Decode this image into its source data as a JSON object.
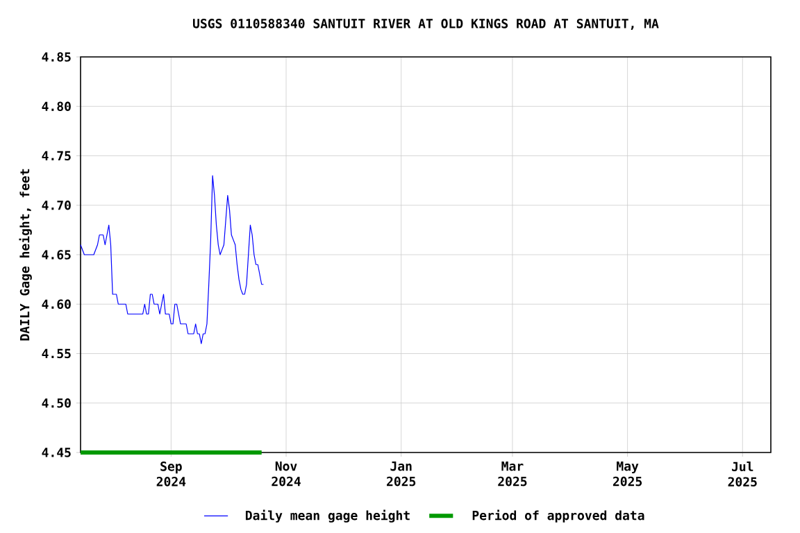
{
  "chart_data": {
    "type": "line",
    "title": "USGS 0110588340 SANTUIT RIVER AT OLD KINGS ROAD AT SANTUIT, MA",
    "ylabel": "DAILY Gage height, feet",
    "xlim": [
      "2024-07-15",
      "2025-07-16"
    ],
    "xticks": [
      {
        "value": "2024-09-01",
        "label": "Sep 2024"
      },
      {
        "value": "2024-11-01",
        "label": "Nov 2024"
      },
      {
        "value": "2025-01-01",
        "label": "Jan 2025"
      },
      {
        "value": "2025-03-01",
        "label": "Mar 2025"
      },
      {
        "value": "2025-05-01",
        "label": "May 2025"
      },
      {
        "value": "2025-07-01",
        "label": "Jul 2025"
      }
    ],
    "ylim": [
      4.45,
      4.85
    ],
    "yticks": [
      {
        "value": 4.45,
        "label": "4.45"
      },
      {
        "value": 4.5,
        "label": "4.50"
      },
      {
        "value": 4.55,
        "label": "4.55"
      },
      {
        "value": 4.6,
        "label": "4.60"
      },
      {
        "value": 4.65,
        "label": "4.65"
      },
      {
        "value": 4.7,
        "label": "4.70"
      },
      {
        "value": 4.75,
        "label": "4.75"
      },
      {
        "value": 4.8,
        "label": "4.80"
      },
      {
        "value": 4.85,
        "label": "4.85"
      }
    ],
    "grid": true,
    "legend": "bottom",
    "series": [
      {
        "name": "Daily mean gage height",
        "color": "#0000ff",
        "x": [
          "2024-07-15",
          "2024-07-17",
          "2024-07-22",
          "2024-07-24",
          "2024-07-25",
          "2024-07-27",
          "2024-07-28",
          "2024-07-29",
          "2024-07-30",
          "2024-07-31",
          "2024-08-01",
          "2024-08-03",
          "2024-08-04",
          "2024-08-08",
          "2024-08-09",
          "2024-08-17",
          "2024-08-18",
          "2024-08-19",
          "2024-08-20",
          "2024-08-21",
          "2024-08-22",
          "2024-08-23",
          "2024-08-25",
          "2024-08-26",
          "2024-08-27",
          "2024-08-28",
          "2024-08-29",
          "2024-08-31",
          "2024-09-01",
          "2024-09-02",
          "2024-09-03",
          "2024-09-04",
          "2024-09-05",
          "2024-09-06",
          "2024-09-09",
          "2024-09-10",
          "2024-09-13",
          "2024-09-14",
          "2024-09-15",
          "2024-09-16",
          "2024-09-17",
          "2024-09-18",
          "2024-09-19",
          "2024-09-20",
          "2024-09-21",
          "2024-09-22",
          "2024-09-23",
          "2024-09-24",
          "2024-09-25",
          "2024-09-26",
          "2024-09-27",
          "2024-09-28",
          "2024-09-29",
          "2024-09-30",
          "2024-10-01",
          "2024-10-02",
          "2024-10-03",
          "2024-10-04",
          "2024-10-05",
          "2024-10-06",
          "2024-10-07",
          "2024-10-08",
          "2024-10-09",
          "2024-10-10",
          "2024-10-11",
          "2024-10-12",
          "2024-10-13",
          "2024-10-14",
          "2024-10-15",
          "2024-10-16",
          "2024-10-17",
          "2024-10-18",
          "2024-10-19",
          "2024-10-20"
        ],
        "values": [
          4.66,
          4.65,
          4.65,
          4.66,
          4.67,
          4.67,
          4.66,
          4.67,
          4.68,
          4.66,
          4.61,
          4.61,
          4.6,
          4.6,
          4.59,
          4.59,
          4.6,
          4.59,
          4.59,
          4.61,
          4.61,
          4.6,
          4.6,
          4.59,
          4.6,
          4.61,
          4.59,
          4.59,
          4.58,
          4.58,
          4.6,
          4.6,
          4.59,
          4.58,
          4.58,
          4.57,
          4.57,
          4.58,
          4.57,
          4.57,
          4.56,
          4.57,
          4.57,
          4.58,
          4.62,
          4.665,
          4.73,
          4.71,
          4.68,
          4.66,
          4.65,
          4.655,
          4.66,
          4.685,
          4.71,
          4.695,
          4.67,
          4.665,
          4.66,
          4.64,
          4.625,
          4.615,
          4.61,
          4.61,
          4.62,
          4.65,
          4.68,
          4.67,
          4.65,
          4.64,
          4.64,
          4.63,
          4.62,
          4.62
        ]
      },
      {
        "name": "Period of approved data",
        "color": "#009900",
        "x": [
          "2024-07-15",
          "2024-10-19"
        ],
        "values": [
          4.45,
          4.45
        ]
      }
    ]
  }
}
